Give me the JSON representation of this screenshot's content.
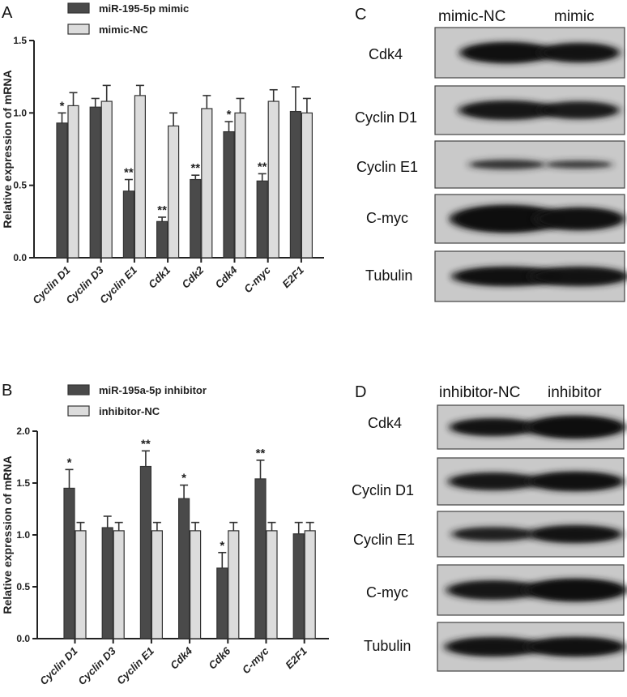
{
  "panels": {
    "a": "A",
    "b": "B",
    "c": "C",
    "d": "D"
  },
  "colors": {
    "series_dark": "#4a4a4a",
    "series_light": "#dcdcdc",
    "axis": "#222222"
  },
  "chart_data": [
    {
      "type": "bar",
      "panel": "A",
      "ylabel": "Relative expression of mRNA",
      "ylim": [
        0,
        1.5
      ],
      "yticks": [
        "0.0",
        "0.5",
        "1.0",
        "1.5"
      ],
      "categories": [
        "Cyclin D1",
        "Cyclin D3",
        "Cyclin E1",
        "Cdk1",
        "Cdk2",
        "Cdk4",
        "C-myc",
        "E2F1"
      ],
      "series": [
        {
          "name": "miR-195-5p mimic",
          "values": [
            0.93,
            1.04,
            0.46,
            0.25,
            0.54,
            0.87,
            0.53,
            1.01
          ],
          "errors": [
            0.07,
            0.06,
            0.08,
            0.03,
            0.03,
            0.07,
            0.05,
            0.17
          ]
        },
        {
          "name": "mimic-NC",
          "values": [
            1.05,
            1.08,
            1.12,
            0.91,
            1.03,
            1.0,
            1.08,
            1.0
          ],
          "errors": [
            0.09,
            0.11,
            0.07,
            0.09,
            0.09,
            0.1,
            0.08,
            0.1
          ]
        }
      ],
      "significance": [
        "*",
        "",
        "**",
        "**",
        "**",
        "*",
        "**",
        ""
      ],
      "legend_position": "top-left"
    },
    {
      "type": "bar",
      "panel": "B",
      "ylabel": "Relative expression of mRNA",
      "ylim": [
        0,
        2.0
      ],
      "yticks": [
        "0.0",
        "0.5",
        "1.0",
        "1.5",
        "2.0"
      ],
      "categories": [
        "Cyclin D1",
        "Cyclin D3",
        "Cyclin E1",
        "Cdk4",
        "Cdk6",
        "C-myc",
        "E2F1"
      ],
      "series": [
        {
          "name": "miR-195a-5p inhibitor",
          "values": [
            1.45,
            1.07,
            1.66,
            1.35,
            0.68,
            1.54,
            1.01
          ],
          "errors": [
            0.18,
            0.11,
            0.15,
            0.13,
            0.15,
            0.18,
            0.11
          ]
        },
        {
          "name": "inhibitor-NC",
          "values": [
            1.04,
            1.04,
            1.04,
            1.04,
            1.04,
            1.04,
            1.04
          ],
          "errors": [
            0.08,
            0.08,
            0.08,
            0.08,
            0.08,
            0.08,
            0.08
          ]
        }
      ],
      "significance": [
        "*",
        "",
        "**",
        "*",
        "*",
        "**",
        ""
      ],
      "legend_position": "top-left"
    }
  ],
  "blots": [
    {
      "panel": "C",
      "columns": [
        "mimic-NC",
        "mimic"
      ],
      "rows": [
        "Cdk4",
        "Cyclin D1",
        "Cyclin E1",
        "C-myc",
        "Tubulin"
      ]
    },
    {
      "panel": "D",
      "columns": [
        "inhibitor-NC",
        "inhibitor"
      ],
      "rows": [
        "Cdk4",
        "Cyclin D1",
        "Cyclin E1",
        "C-myc",
        "Tubulin"
      ]
    }
  ]
}
